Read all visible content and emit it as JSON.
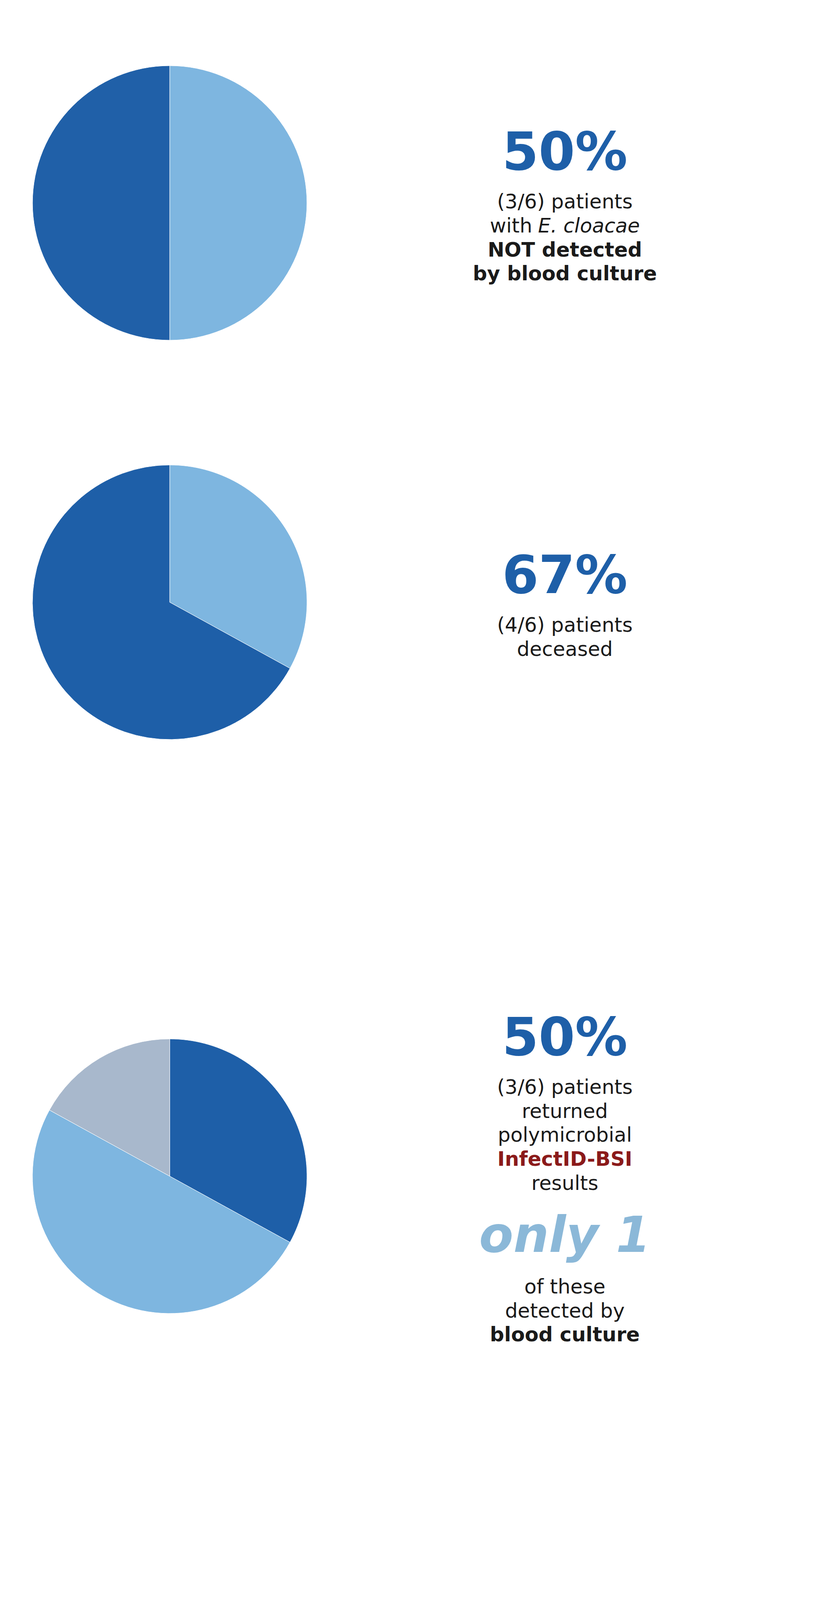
{
  "chart_data": [
    {
      "type": "pie",
      "values": [
        50,
        50
      ],
      "colors": [
        "#7EB6E0",
        "#2060A8"
      ],
      "annotations": [
        {
          "text": "50%",
          "color": "#1E5FA8"
        },
        {
          "text": "(3/6) patients",
          "color": "#1a1a1a"
        },
        {
          "text": "with",
          "color": "#1a1a1a"
        },
        {
          "text": "E. cloacae",
          "color": "#1a1a1a"
        },
        {
          "text": "NOT detected",
          "color": "#1a1a1a"
        },
        {
          "text": "by blood culture",
          "color": "#1a1a1a"
        }
      ]
    },
    {
      "type": "pie",
      "values": [
        33,
        67
      ],
      "colors": [
        "#7EB6E0",
        "#1E5FA8"
      ],
      "annotations": [
        {
          "text": "67%",
          "color": "#1E5FA8"
        },
        {
          "text": "(4/6) patients",
          "color": "#1a1a1a"
        },
        {
          "text": "deceased",
          "color": "#1a1a1a"
        }
      ]
    },
    {
      "type": "pie",
      "values": [
        33,
        50,
        17
      ],
      "colors": [
        "#1E5FA8",
        "#7EB6E0",
        "#A8B8CC"
      ],
      "annotations": [
        {
          "text": "50%",
          "color": "#1E5FA8"
        },
        {
          "text": "(3/6) patients",
          "color": "#1a1a1a"
        },
        {
          "text": "returned",
          "color": "#1a1a1a"
        },
        {
          "text": "polymicrobial",
          "color": "#1a1a1a"
        },
        {
          "text": "InfectID-BSI",
          "color": "#8B1A1A"
        },
        {
          "text": "results",
          "color": "#1a1a1a"
        },
        {
          "text": "only 1",
          "color": "#8BB8D8"
        },
        {
          "text": "of these",
          "color": "#1a1a1a"
        },
        {
          "text": "detected by",
          "color": "#1a1a1a"
        },
        {
          "text": "blood culture",
          "color": "#1a1a1a"
        }
      ]
    }
  ]
}
